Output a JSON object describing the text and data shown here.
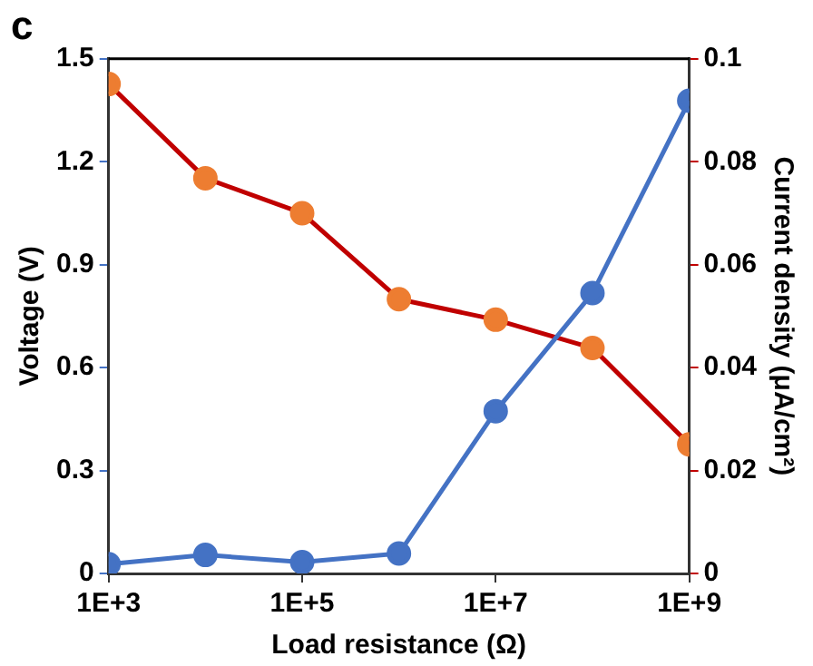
{
  "chart_data": {
    "type": "line",
    "title": "c",
    "xlabel": "Load resistance (Ω)",
    "ylabel": "Voltage (V)",
    "y2label": "Current density (μA/cm²)",
    "x": [
      1000,
      10000,
      100000,
      1000000,
      10000000,
      100000000,
      1000000000
    ],
    "series": [
      {
        "color": "#4472c4",
        "values": [
          0.027,
          0.054,
          0.033,
          0.058,
          0.473,
          0.817,
          1.378
        ]
      },
      {
        "color": "#c00000",
        "colors": [
          "#ed7d31",
          "#ed7d31",
          "#ed7d31",
          "#ed7d31",
          "#ed7d31",
          "#ed7d31",
          "#ed7d31"
        ],
        "axis": "y2",
        "values": [
          0.0951,
          0.0768,
          0.07,
          0.0533,
          0.0493,
          0.0438,
          0.0251
        ]
      }
    ],
    "log": "x",
    "xlim": [
      1000,
      1000000000
    ],
    "xticks": [
      {
        "value": 1000,
        "label": "1E+3"
      },
      {
        "value": 100000,
        "label": "1E+5"
      },
      {
        "value": 10000000,
        "label": "1E+7"
      },
      {
        "value": 1000000000,
        "label": "1E+9"
      }
    ],
    "ylim": [
      0,
      1.5
    ],
    "yticks": [
      0,
      0.3,
      0.6,
      0.9,
      1.2,
      1.5
    ],
    "y2lim": [
      0,
      0.1
    ],
    "y2ticks": [
      0,
      0.02,
      0.04,
      0.06,
      0.08,
      0.1
    ],
    "grid": false,
    "legend": false,
    "marker": "circle",
    "line_style": "solid"
  }
}
